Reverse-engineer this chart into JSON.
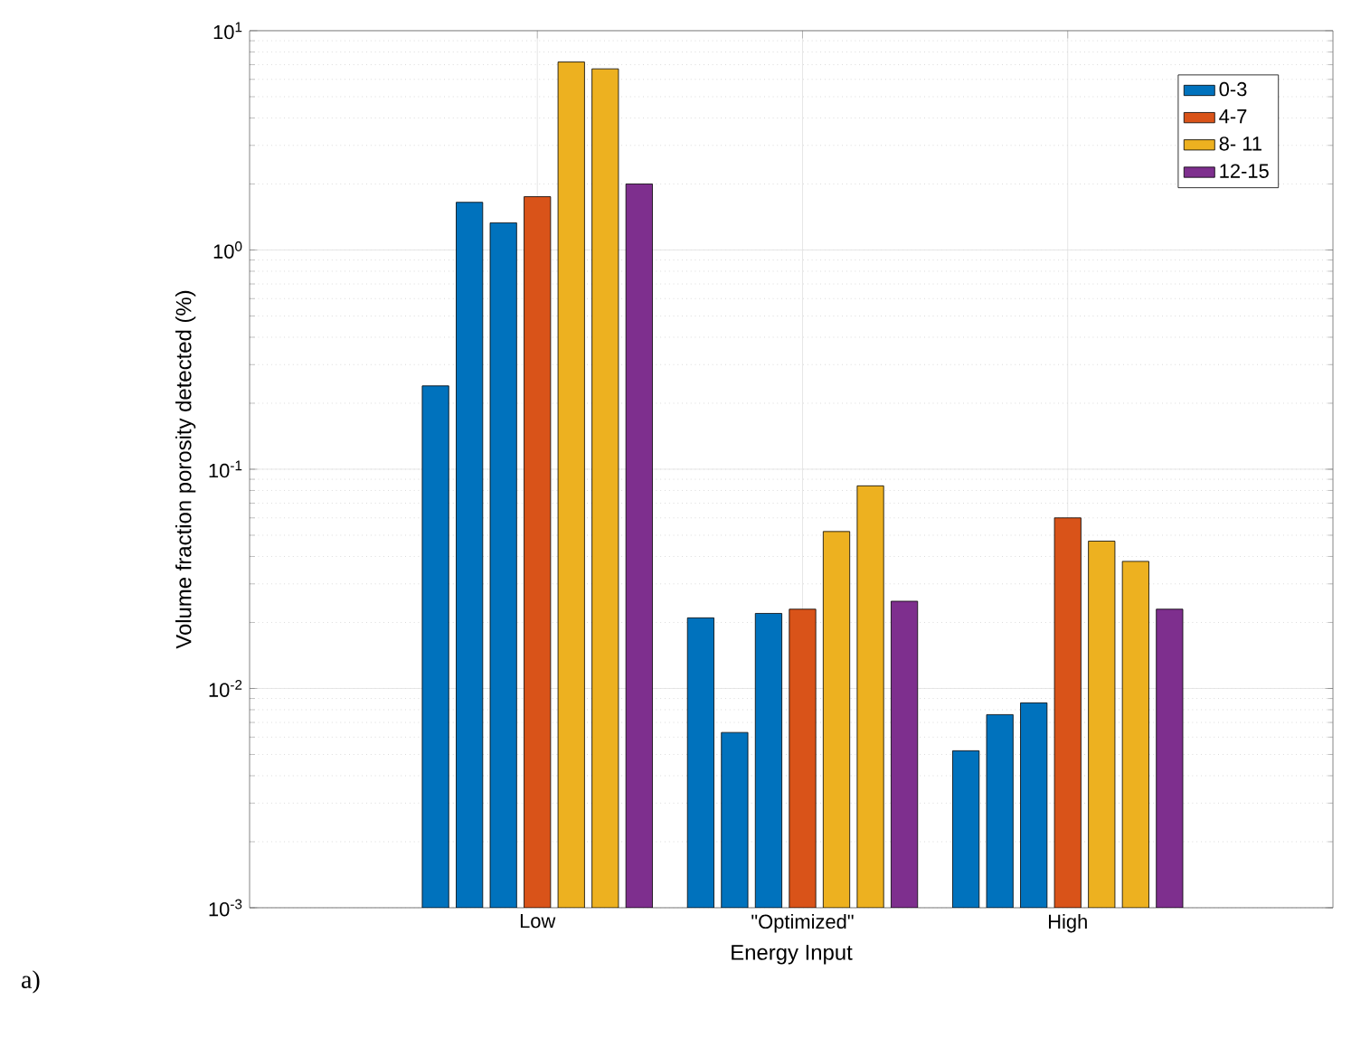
{
  "chart_data": {
    "type": "bar",
    "xlabel": "Energy Input",
    "ylabel": "Volume fraction porosity detected (%)",
    "categories": [
      "Low",
      "\"Optimized\"",
      "High"
    ],
    "series": [
      {
        "name": "0-3",
        "color": "#0072bd",
        "values": [
          0.24,
          0.021,
          0.0052
        ]
      },
      {
        "color": "#0072bd",
        "values": [
          1.65,
          0.0063,
          0.0076
        ]
      },
      {
        "color": "#0072bd",
        "values": [
          1.33,
          0.022,
          0.0086
        ]
      },
      {
        "name": "4-7",
        "color": "#d95319",
        "values": [
          1.75,
          0.023,
          0.06
        ]
      },
      {
        "name": "8- 11",
        "color": "#edb120",
        "values": [
          7.2,
          0.052,
          0.047
        ]
      },
      {
        "color": "#edb120",
        "values": [
          6.7,
          0.084,
          0.038
        ]
      },
      {
        "name": "12-15",
        "color": "#7e2f8e",
        "values": [
          2.0,
          0.025,
          0.023
        ]
      }
    ],
    "log": "y",
    "ylim": [
      0.001,
      10
    ],
    "yticks": [
      {
        "value": 0.001,
        "label": "10$^{-3}$"
      },
      {
        "value": 0.01,
        "label": "10$^{-2}$"
      },
      {
        "value": 0.1,
        "label": "10$^{-1}$"
      },
      {
        "value": 1,
        "label": "10$^{0}$"
      },
      {
        "value": 10,
        "label": "10$^{1}$"
      }
    ],
    "grid": true,
    "legend": "top right",
    "annotations": [
      "a)"
    ]
  }
}
